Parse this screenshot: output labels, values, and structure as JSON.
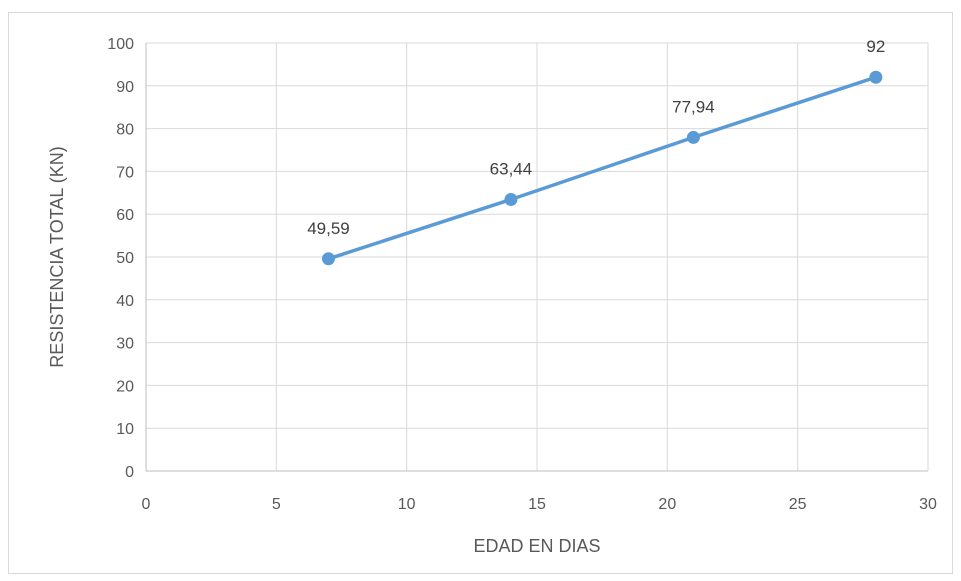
{
  "chart_data": {
    "type": "scatter",
    "title": "",
    "xlabel": "EDAD EN DIAS",
    "ylabel": "RESISTENCIA TOTAL (KN)",
    "xlim": [
      0,
      30
    ],
    "ylim": [
      0,
      100
    ],
    "x_ticks": [
      0,
      5,
      10,
      15,
      20,
      25,
      30
    ],
    "y_ticks": [
      0,
      10,
      20,
      30,
      40,
      50,
      60,
      70,
      80,
      90,
      100
    ],
    "grid": true,
    "legend": "none",
    "line_color": "#5b9bd5",
    "series": [
      {
        "x": [
          7,
          14,
          21,
          28
        ],
        "y": [
          49.59,
          63.44,
          77.94,
          92
        ],
        "data_labels": [
          "49,59",
          "63,44",
          "77,94",
          "92"
        ]
      }
    ]
  }
}
